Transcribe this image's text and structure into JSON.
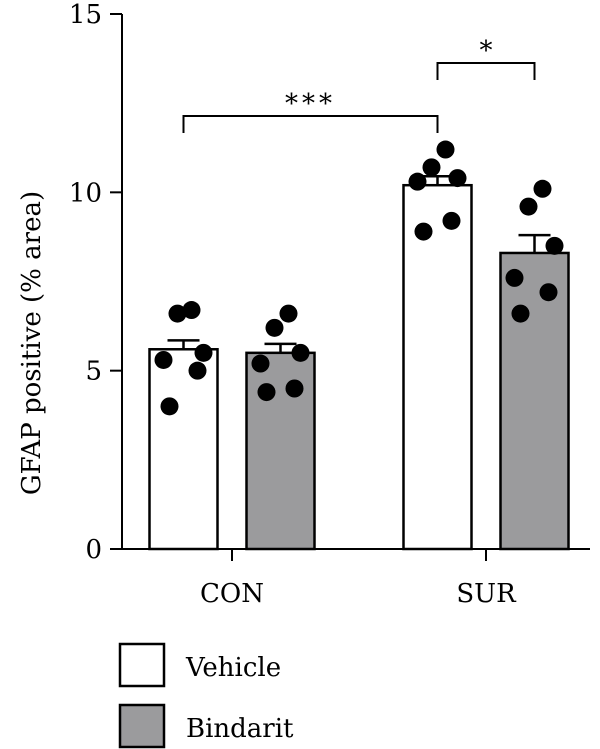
{
  "chart_data": {
    "type": "bar",
    "title": "",
    "xlabel": "",
    "ylabel": "GFAP positive (% area)",
    "ylim": [
      0,
      15
    ],
    "yticks": [
      0,
      5,
      10,
      15
    ],
    "categories": [
      "CON",
      "SUR"
    ],
    "series": [
      {
        "name": "Vehicle",
        "color": "#ffffff",
        "values": [
          5.6,
          10.2
        ],
        "errors": [
          0.25,
          0.25
        ],
        "points": [
          [
            4.0,
            5.0,
            5.3,
            5.5,
            6.6,
            6.7
          ],
          [
            8.9,
            9.2,
            10.3,
            10.4,
            10.7,
            11.2
          ]
        ]
      },
      {
        "name": "Bindarit",
        "color": "#9b9b9d",
        "values": [
          5.5,
          8.3
        ],
        "errors": [
          0.25,
          0.5
        ],
        "points": [
          [
            4.4,
            4.5,
            5.2,
            5.5,
            6.2,
            6.6
          ],
          [
            6.6,
            7.2,
            7.6,
            8.5,
            9.6,
            10.1
          ]
        ]
      }
    ],
    "significance": [
      {
        "label": "***",
        "from": "CON Vehicle",
        "to": "SUR Vehicle"
      },
      {
        "label": "*",
        "from": "SUR Vehicle",
        "to": "SUR Bindarit"
      }
    ],
    "legend": {
      "position": "bottom-left",
      "items": [
        {
          "label": "Vehicle",
          "color": "#ffffff"
        },
        {
          "label": "Bindarit",
          "color": "#9b9b9d"
        }
      ]
    }
  }
}
